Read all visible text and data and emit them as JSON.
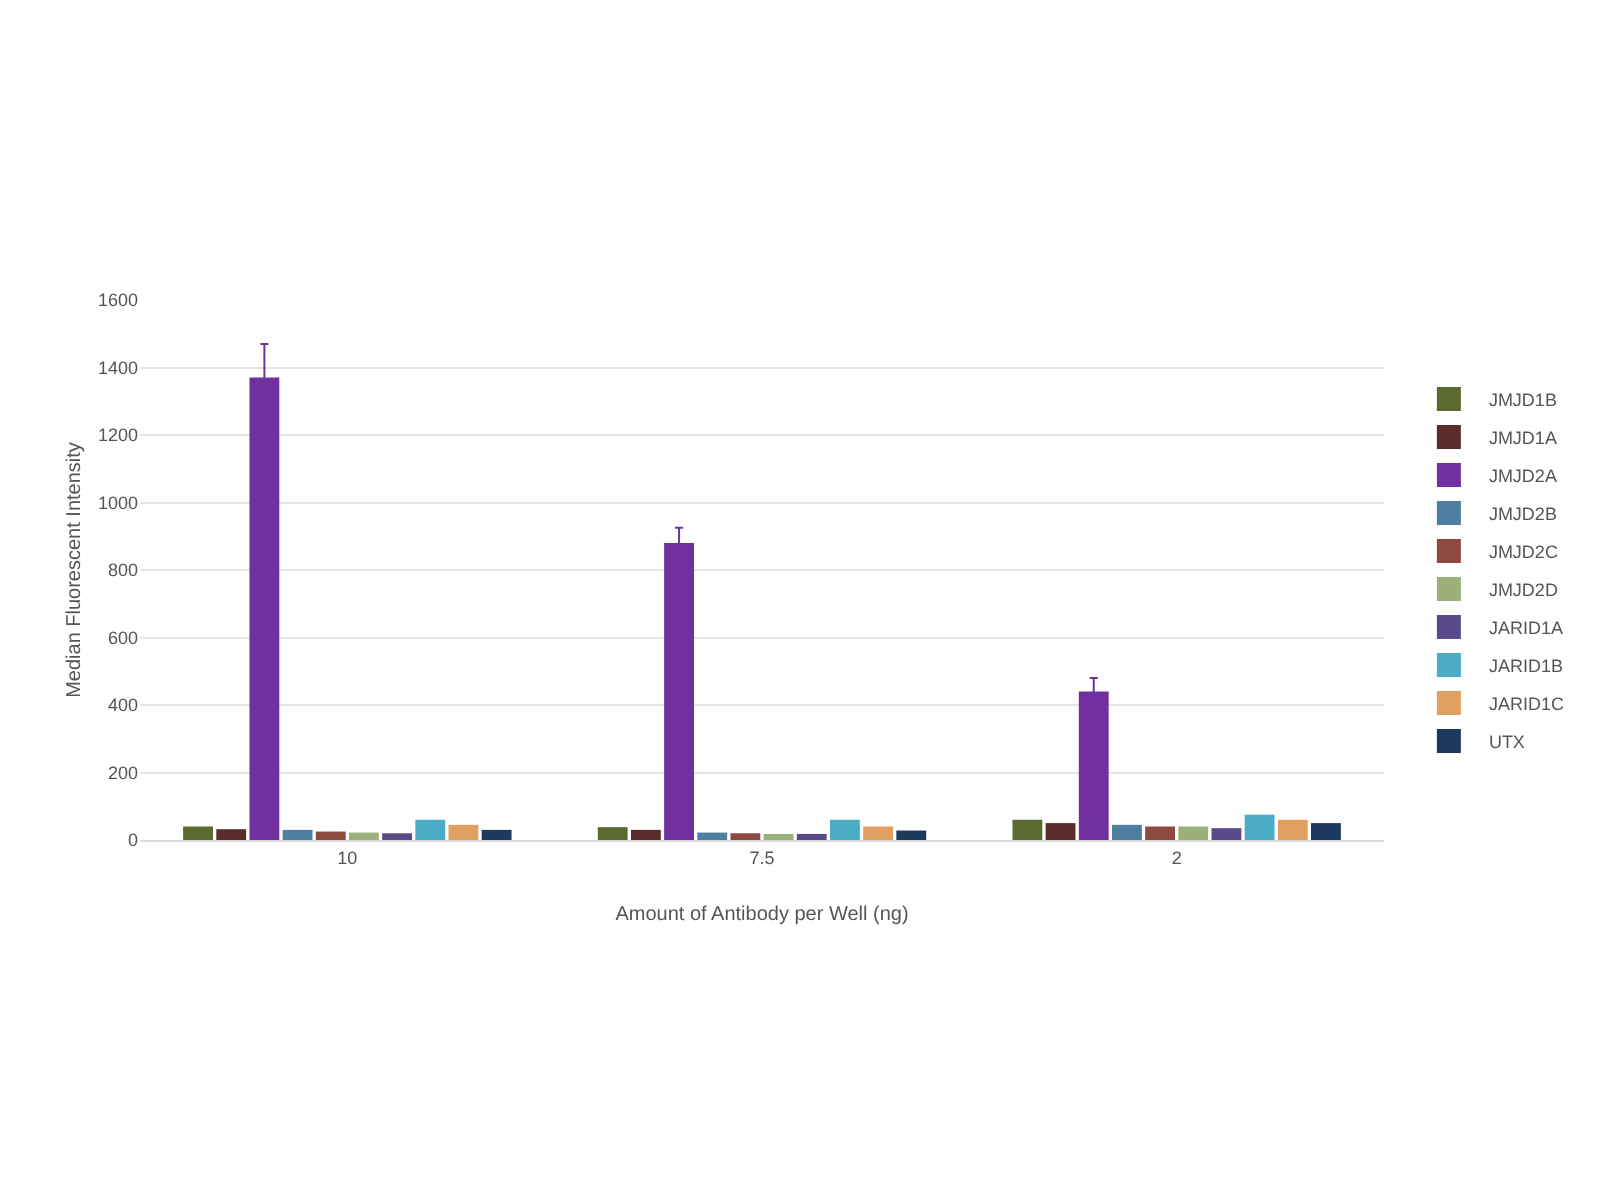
{
  "chart_data": {
    "type": "bar",
    "xlabel": "Amount of Antibody per Well (ng)",
    "ylabel": "Median Fluorescent Intensity",
    "categories": [
      "10",
      "7.5",
      "2"
    ],
    "series": [
      {
        "name": "JMJD1B",
        "color": "#5b6b2f",
        "values": [
          40,
          38,
          60
        ]
      },
      {
        "name": "JMJD1A",
        "color": "#5a2d2a",
        "values": [
          32,
          30,
          50
        ]
      },
      {
        "name": "JMJD2A",
        "color": "#7030a0",
        "values": [
          1370,
          880,
          440
        ],
        "errors": [
          100,
          45,
          40
        ]
      },
      {
        "name": "JMJD2B",
        "color": "#4f7fa0",
        "values": [
          30,
          22,
          45
        ]
      },
      {
        "name": "JMJD2C",
        "color": "#8b4a3f",
        "values": [
          25,
          20,
          40
        ]
      },
      {
        "name": "JMJD2D",
        "color": "#9bb07a",
        "values": [
          22,
          18,
          40
        ]
      },
      {
        "name": "JARID1A",
        "color": "#5a4a8a",
        "values": [
          20,
          18,
          35
        ]
      },
      {
        "name": "JARID1B",
        "color": "#4bacc6",
        "values": [
          60,
          60,
          75
        ]
      },
      {
        "name": "JARID1C",
        "color": "#e0a060",
        "values": [
          45,
          40,
          60
        ]
      },
      {
        "name": "UTX",
        "color": "#1f3a5f",
        "values": [
          30,
          28,
          50
        ]
      }
    ],
    "ylim": [
      0,
      1600
    ],
    "yticks": [
      0,
      200,
      400,
      600,
      800,
      1000,
      1200,
      1400,
      1600
    ],
    "grid": "y",
    "legend": "right"
  }
}
